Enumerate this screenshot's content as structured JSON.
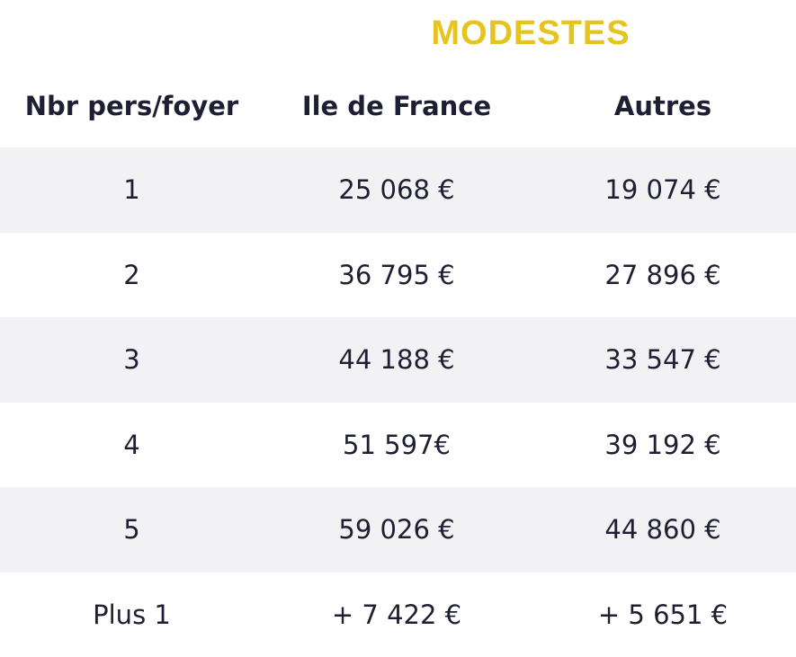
{
  "title": "MODESTES",
  "colors": {
    "title": "#e5c41f",
    "stripe": "#f2f2f4",
    "text": "#1f1f33"
  },
  "table": {
    "headers": [
      "Nbr pers/foyer",
      "Ile de France",
      "Autres"
    ],
    "rows": [
      [
        "1",
        "25 068 €",
        "19 074 €"
      ],
      [
        "2",
        "36 795 €",
        "27 896 €"
      ],
      [
        "3",
        "44 188 €",
        "33 547 €"
      ],
      [
        "4",
        "51 597€",
        "39 192 €"
      ],
      [
        "5",
        "59 026 €",
        "44 860 €"
      ],
      [
        "Plus 1",
        "+ 7 422 €",
        "+ 5 651 €"
      ]
    ]
  }
}
